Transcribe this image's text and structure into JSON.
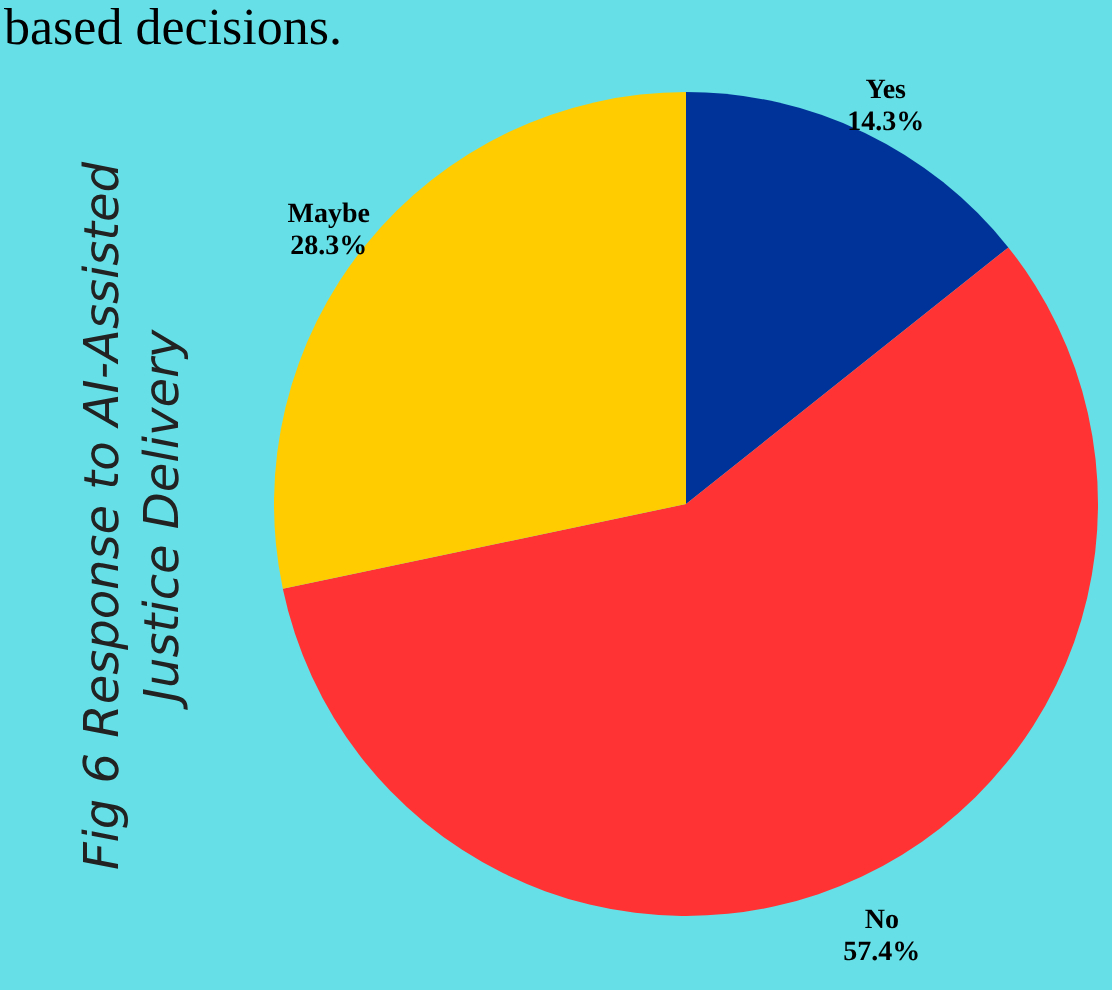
{
  "chart_data": {
    "type": "pie",
    "title": "Fig 6 Response to AI-Assisted Justice Delivery",
    "annotations": [
      "based decisions."
    ],
    "categories": [
      "Yes",
      "No",
      "Maybe"
    ],
    "values": [
      14.3,
      57.4,
      28.3
    ],
    "value_labels": [
      "14.3%",
      "57.4%",
      "28.3%"
    ],
    "colors": [
      "#003399",
      "#ff3333",
      "#ffcc00"
    ]
  }
}
